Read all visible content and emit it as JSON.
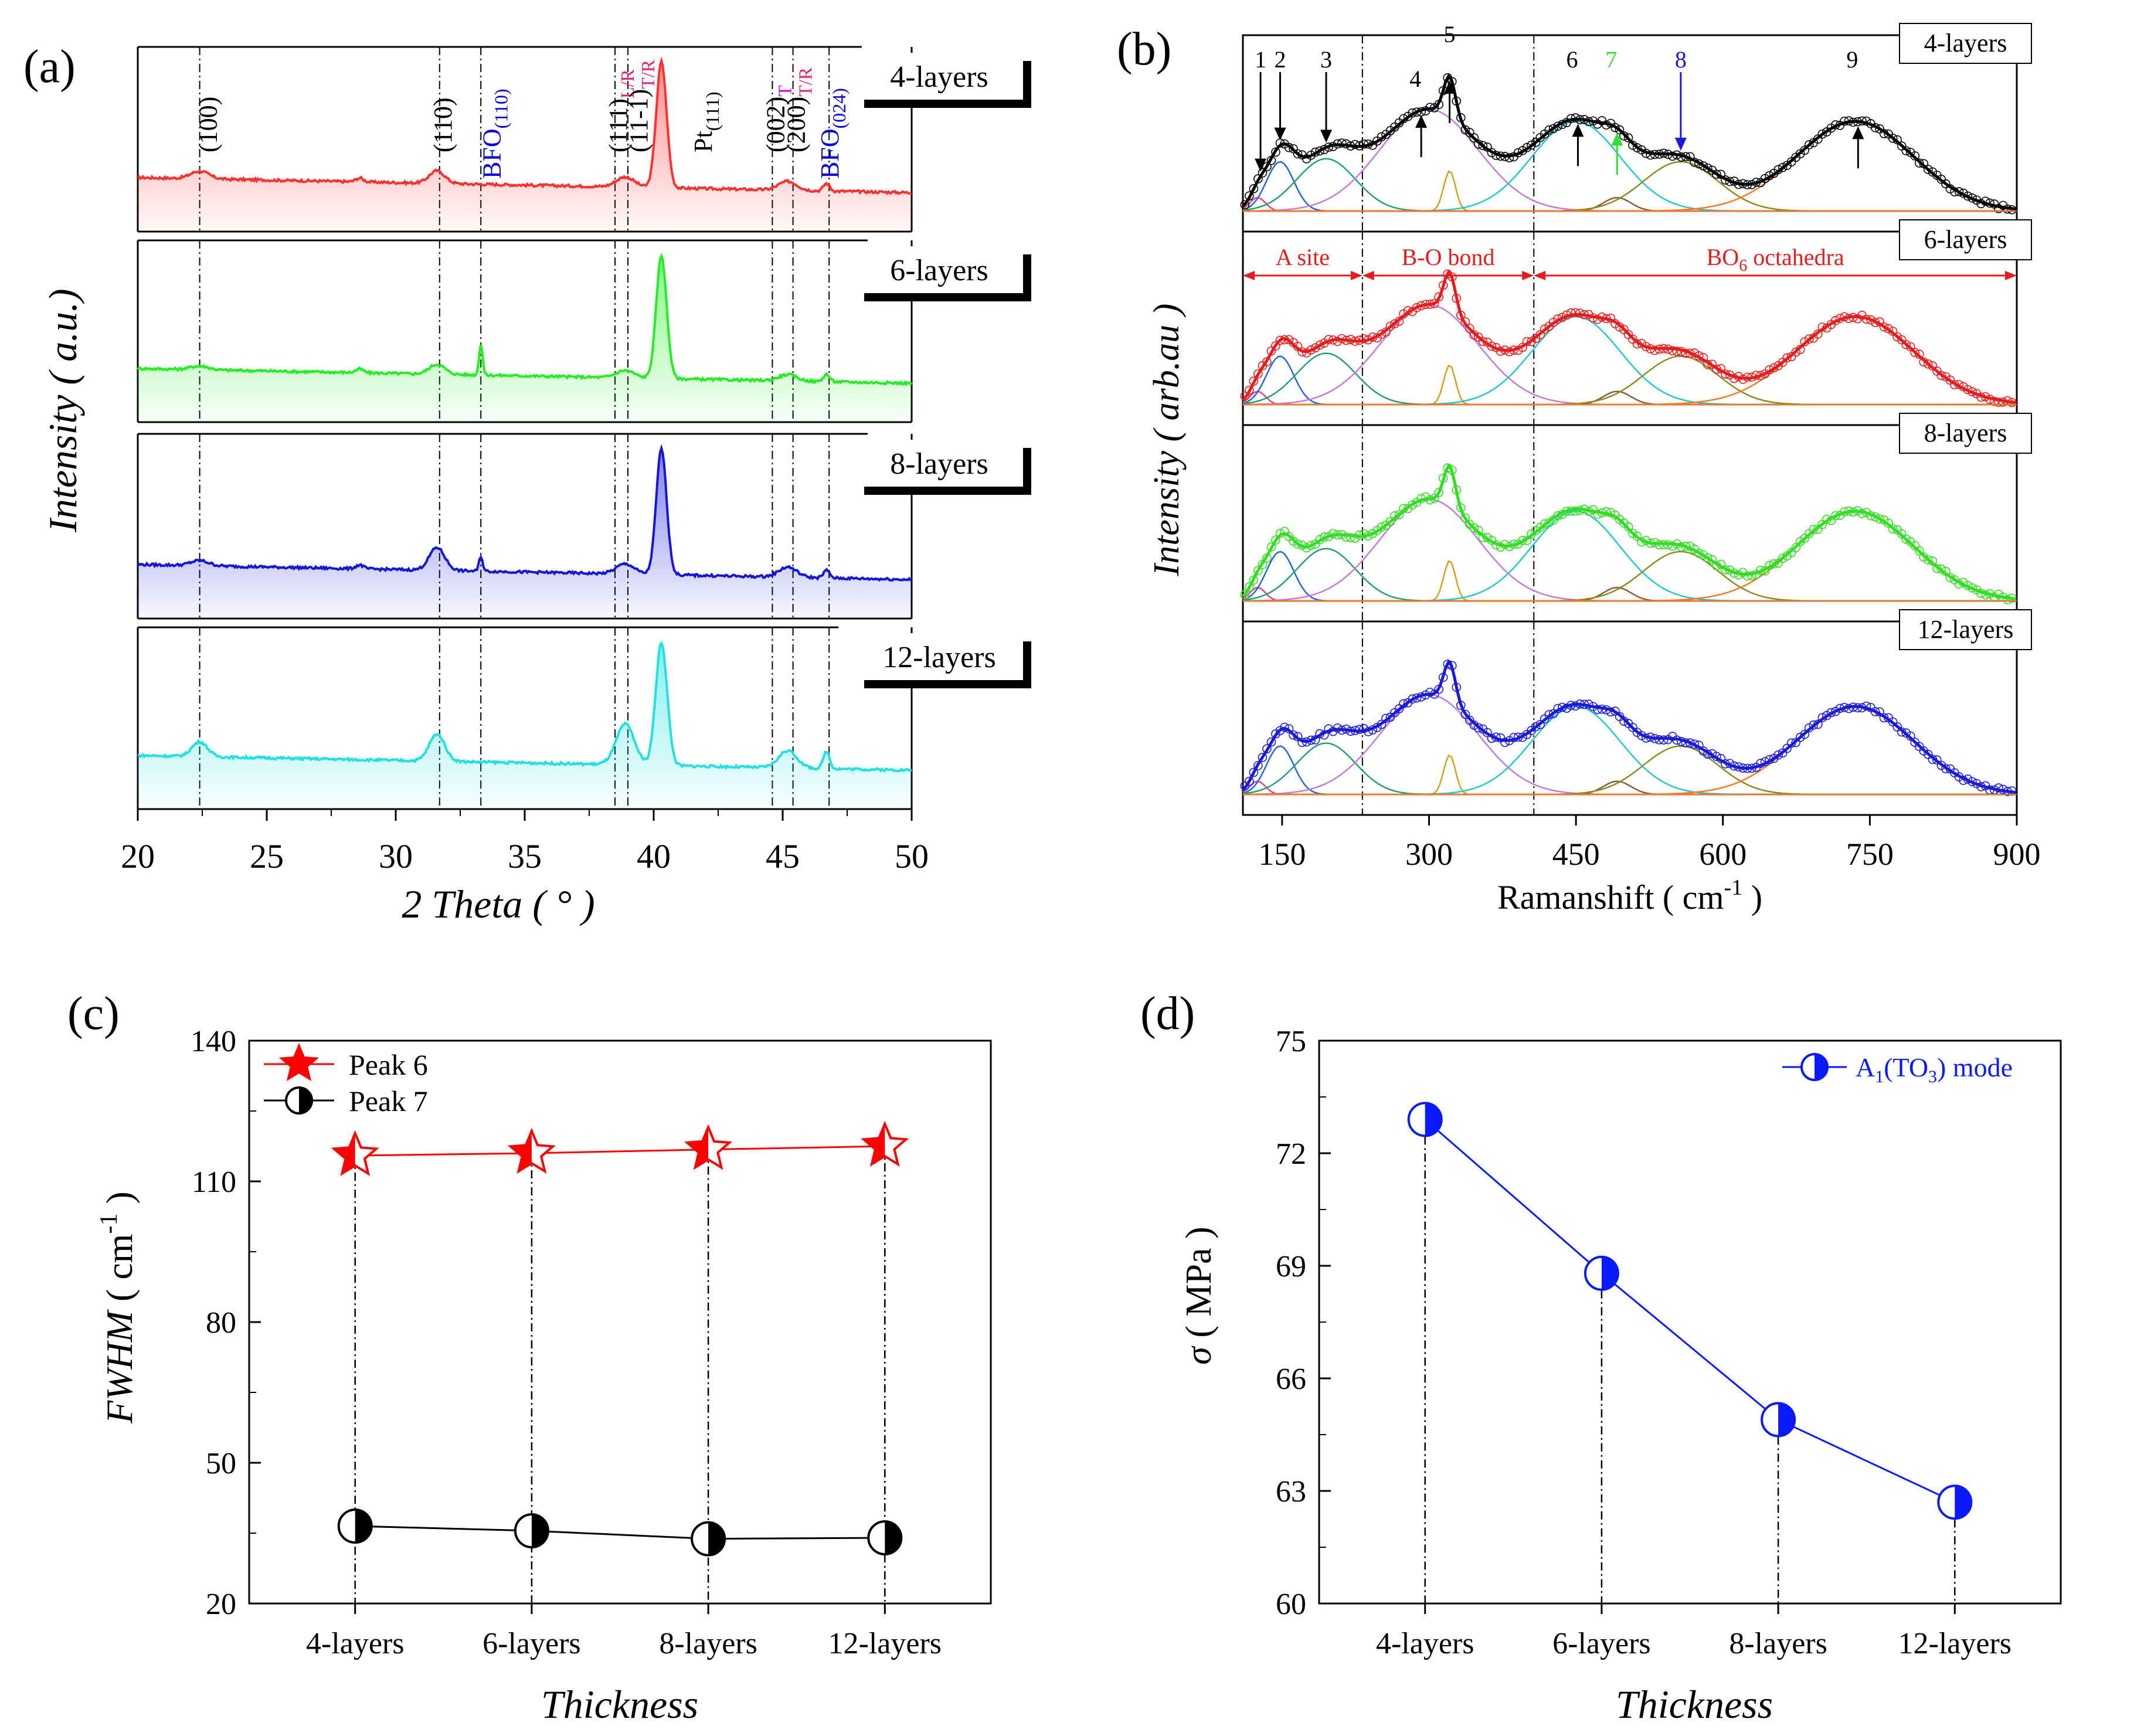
{
  "chart_data": [
    {
      "panel": "(a)",
      "type": "line",
      "xlabel": "2 Theta ( ° )",
      "ylabel": "Intensity ( a.u.)",
      "xlim": [
        20,
        50
      ],
      "xticks": [
        20,
        25,
        30,
        35,
        40,
        45,
        50
      ],
      "reference_lines": [
        22.4,
        31.7,
        33.3,
        38.5,
        39.0,
        44.6,
        45.4,
        46.8
      ],
      "peak_annotations": [
        {
          "x": 22.6,
          "label": "(100)",
          "color": "#000000"
        },
        {
          "x": 31.7,
          "label": "(110)",
          "color": "#000000"
        },
        {
          "x": 33.6,
          "label": "BFO",
          "sub": "(110)",
          "color": "#0000dd"
        },
        {
          "x": 38.5,
          "label": "(111)",
          "sub": "L/R",
          "color": "#000000",
          "sub_color": "#e0206f"
        },
        {
          "x": 39.3,
          "label": "(11-1)",
          "sub": "T/R",
          "color": "#000000",
          "sub_color": "#e0206f"
        },
        {
          "x": 41.8,
          "label": "Pt",
          "sub": "(111)",
          "color": "#000000"
        },
        {
          "x": 44.6,
          "label": "(002)",
          "sub": "T",
          "color": "#000000",
          "sub_color": "#cc00cc"
        },
        {
          "x": 45.4,
          "label": "(200)",
          "sub": "T/R",
          "color": "#000000",
          "sub_color": "#e0206f"
        },
        {
          "x": 46.7,
          "label": "BFO",
          "sub": "(024)",
          "color": "#0000dd"
        }
      ],
      "series": [
        {
          "name": "4-layers",
          "color": "#ff3030",
          "peaks": [
            [
              22.4,
              0.06,
              0.35
            ],
            [
              28.6,
              0.03,
              0.15
            ],
            [
              31.6,
              0.1,
              0.3
            ],
            [
              38.9,
              0.08,
              0.35
            ],
            [
              40.3,
              1.0,
              0.2
            ],
            [
              45.2,
              0.07,
              0.35
            ],
            [
              46.7,
              0.06,
              0.12
            ]
          ]
        },
        {
          "name": "6-layers",
          "color": "#22ee22",
          "peaks": [
            [
              22.4,
              0.03,
              0.35
            ],
            [
              28.6,
              0.03,
              0.15
            ],
            [
              31.6,
              0.08,
              0.3
            ],
            [
              33.3,
              0.25,
              0.07
            ],
            [
              38.9,
              0.06,
              0.35
            ],
            [
              40.3,
              1.0,
              0.2
            ],
            [
              45.2,
              0.05,
              0.35
            ],
            [
              46.7,
              0.06,
              0.12
            ]
          ]
        },
        {
          "name": "8-layers",
          "color": "#1515d8",
          "peaks": [
            [
              22.4,
              0.04,
              0.35
            ],
            [
              28.6,
              0.03,
              0.15
            ],
            [
              31.6,
              0.18,
              0.3
            ],
            [
              33.3,
              0.12,
              0.07
            ],
            [
              38.9,
              0.08,
              0.35
            ],
            [
              40.3,
              1.0,
              0.2
            ],
            [
              45.2,
              0.08,
              0.35
            ],
            [
              46.7,
              0.06,
              0.12
            ]
          ]
        },
        {
          "name": "12-layers",
          "color": "#20e0e0",
          "peaks": [
            [
              22.4,
              0.12,
              0.3
            ],
            [
              31.6,
              0.22,
              0.3
            ],
            [
              38.9,
              0.33,
              0.35
            ],
            [
              40.3,
              1.0,
              0.22
            ],
            [
              45.2,
              0.14,
              0.35
            ],
            [
              46.7,
              0.14,
              0.12
            ]
          ]
        }
      ]
    },
    {
      "panel": "(b)",
      "type": "line",
      "xlabel": "Ramanshift ( cm",
      "xlabel_sup": "-1",
      "xlabel_end": " )",
      "ylabel": "Intensity ( arb.au )",
      "xlim": [
        110,
        900
      ],
      "xticks": [
        150,
        300,
        450,
        600,
        750,
        900
      ],
      "reference_lines": [
        232,
        407
      ],
      "regions": [
        {
          "label": "A site",
          "from": 110,
          "to": 232
        },
        {
          "label": "B-O bond",
          "from": 232,
          "to": 407
        },
        {
          "label": "BO",
          "sub": "6",
          "label_end": " octahedra",
          "from": 407,
          "to": 900
        }
      ],
      "mode_labels": [
        {
          "n": "1",
          "x": 128,
          "dir": "down",
          "color": "#000000"
        },
        {
          "n": "2",
          "x": 148,
          "dir": "down",
          "color": "#000000"
        },
        {
          "n": "3",
          "x": 195,
          "dir": "down",
          "color": "#000000"
        },
        {
          "n": "4",
          "x": 292,
          "dir": "up",
          "color": "#000000"
        },
        {
          "n": "5",
          "x": 321,
          "dir": "up",
          "color": "#000000"
        },
        {
          "n": "6",
          "x": 452,
          "dir": "up",
          "color": "#000000"
        },
        {
          "n": "7",
          "x": 492,
          "dir": "up",
          "color": "#33dd33"
        },
        {
          "n": "8",
          "x": 557,
          "dir": "down",
          "color": "#1a1ae0"
        },
        {
          "n": "9",
          "x": 738,
          "dir": "up",
          "color": "#000000"
        }
      ],
      "fit_components": [
        {
          "center": 125,
          "amp": 0.09,
          "sigma": 8,
          "color": "#e0409a"
        },
        {
          "center": 148,
          "amp": 0.33,
          "sigma": 14,
          "color": "#2266dd"
        },
        {
          "center": 195,
          "amp": 0.35,
          "sigma": 30,
          "color": "#22a070"
        },
        {
          "center": 300,
          "amp": 0.68,
          "sigma": 50,
          "color": "#c47adc"
        },
        {
          "center": 321,
          "amp": 0.27,
          "sigma": 6,
          "color": "#d4a020"
        },
        {
          "center": 450,
          "amp": 0.6,
          "sigma": 45,
          "color": "#22c8cc"
        },
        {
          "center": 492,
          "amp": 0.09,
          "sigma": 14,
          "color": "#8b5a3c"
        },
        {
          "center": 557,
          "amp": 0.33,
          "sigma": 38,
          "color": "#8a8a20"
        },
        {
          "center": 735,
          "amp": 0.6,
          "sigma": 60,
          "color": "#ff7722"
        }
      ],
      "series": [
        {
          "name": "4-layers",
          "color": "#000000"
        },
        {
          "name": "6-layers",
          "color": "#e81c1c"
        },
        {
          "name": "8-layers",
          "color": "#33dd22"
        },
        {
          "name": "12-layers",
          "color": "#1a1ad8"
        }
      ]
    },
    {
      "panel": "(c)",
      "type": "line",
      "categories": [
        "4-layers",
        "6-layers",
        "8-layers",
        "12-layers"
      ],
      "xlabel": "Thickness",
      "ylabel": "FWHM",
      "ylabel_rest": " ( cm",
      "ylabel_sup": "-1",
      "ylabel_end": " )",
      "ylim": [
        20,
        140
      ],
      "yticks": [
        20,
        50,
        80,
        110,
        140
      ],
      "legend_position": "top-left",
      "series": [
        {
          "name": "Peak 6",
          "color": "#ff0000",
          "marker": "star-half",
          "values": [
            115.5,
            116.0,
            116.8,
            117.5
          ]
        },
        {
          "name": "Peak 7",
          "color": "#000000",
          "marker": "circle-half",
          "values": [
            36.5,
            35.5,
            33.8,
            34.0
          ]
        }
      ]
    },
    {
      "panel": "(d)",
      "type": "line",
      "categories": [
        "4-layers",
        "6-layers",
        "8-layers",
        "12-layers"
      ],
      "xlabel": "Thickness",
      "ylabel": "σ",
      "ylabel_rest": " ( MPa )",
      "ylim": [
        60,
        75
      ],
      "yticks": [
        60,
        63,
        66,
        69,
        72,
        75
      ],
      "legend_position": "top-right",
      "series": [
        {
          "name": "A",
          "sub": "1",
          "name_mid": "(TO",
          "sub2": "3",
          "name_end": ") mode",
          "color": "#0a1aff",
          "marker": "circle-half",
          "values": [
            72.9,
            68.8,
            64.9,
            62.7
          ]
        }
      ]
    }
  ]
}
